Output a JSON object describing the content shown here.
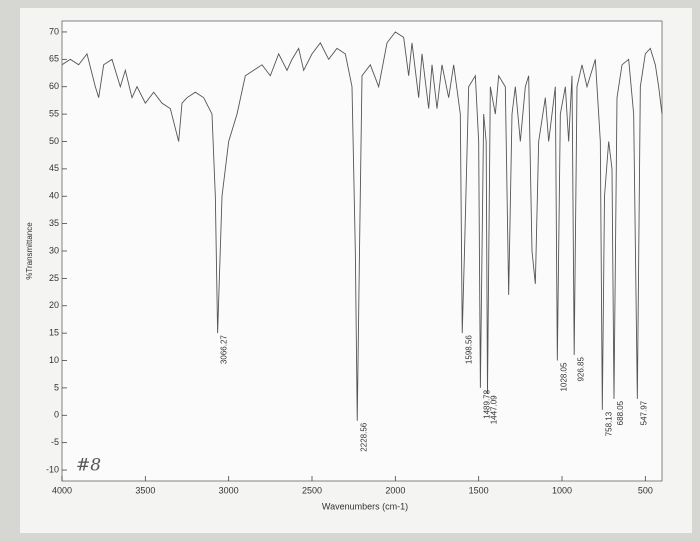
{
  "chart_data": {
    "type": "line",
    "xlabel": "Wavenumbers (cm-1)",
    "ylabel": "%Transmittance",
    "note": "#8",
    "color": "#555555",
    "x": [
      4000,
      3950,
      3900,
      3850,
      3800,
      3780,
      3750,
      3700,
      3650,
      3620,
      3580,
      3550,
      3500,
      3450,
      3400,
      3350,
      3300,
      3280,
      3250,
      3200,
      3150,
      3100,
      3080,
      3066.27,
      3040,
      3000,
      2950,
      2900,
      2850,
      2800,
      2750,
      2700,
      2650,
      2620,
      2580,
      2550,
      2500,
      2450,
      2400,
      2350,
      2300,
      2260,
      2240,
      2228.56,
      2215,
      2200,
      2150,
      2100,
      2050,
      2000,
      1950,
      1920,
      1900,
      1860,
      1840,
      1800,
      1780,
      1750,
      1720,
      1680,
      1650,
      1610,
      1598.56,
      1585,
      1560,
      1520,
      1500,
      1489.78,
      1470,
      1455,
      1447.09,
      1430,
      1400,
      1380,
      1340,
      1320,
      1300,
      1280,
      1250,
      1220,
      1200,
      1180,
      1160,
      1140,
      1100,
      1080,
      1040,
      1028.05,
      1010,
      980,
      960,
      940,
      926.85,
      910,
      880,
      850,
      800,
      770,
      758.13,
      745,
      720,
      700,
      688.05,
      670,
      640,
      600,
      570,
      547.97,
      530,
      500,
      470,
      440,
      420,
      400
    ],
    "values": [
      64,
      65,
      64,
      66,
      60,
      58,
      64,
      65,
      60,
      63,
      58,
      60,
      57,
      59,
      57,
      56,
      50,
      57,
      58,
      59,
      58,
      55,
      40,
      15,
      40,
      50,
      55,
      62,
      63,
      64,
      62,
      66,
      63,
      65,
      67,
      63,
      66,
      68,
      65,
      67,
      66,
      60,
      30,
      -1,
      30,
      62,
      64,
      60,
      68,
      70,
      69,
      62,
      68,
      58,
      66,
      56,
      64,
      56,
      64,
      58,
      64,
      55,
      15,
      30,
      60,
      62,
      50,
      5,
      55,
      50,
      4,
      60,
      55,
      62,
      60,
      22,
      55,
      60,
      50,
      60,
      62,
      30,
      24,
      50,
      58,
      50,
      60,
      10,
      55,
      60,
      50,
      62,
      11,
      60,
      64,
      60,
      65,
      50,
      1,
      40,
      50,
      45,
      3,
      58,
      64,
      65,
      55,
      3,
      60,
      66,
      67,
      64,
      60,
      55
    ],
    "peak_labels": [
      "3066.27",
      "2228.56",
      "1598.56",
      "1489.78",
      "1447.09",
      "1028.05",
      "926.85",
      "758.13",
      "688.05",
      "547.97"
    ],
    "xlim": [
      4000,
      400
    ],
    "xticks": [
      4000,
      3500,
      3000,
      2500,
      2000,
      1500,
      1000,
      500
    ],
    "ylim": [
      -12,
      72
    ],
    "yticks": [
      -10,
      -5,
      0,
      5,
      10,
      15,
      20,
      25,
      30,
      35,
      40,
      45,
      50,
      55,
      60,
      65,
      70
    ]
  }
}
